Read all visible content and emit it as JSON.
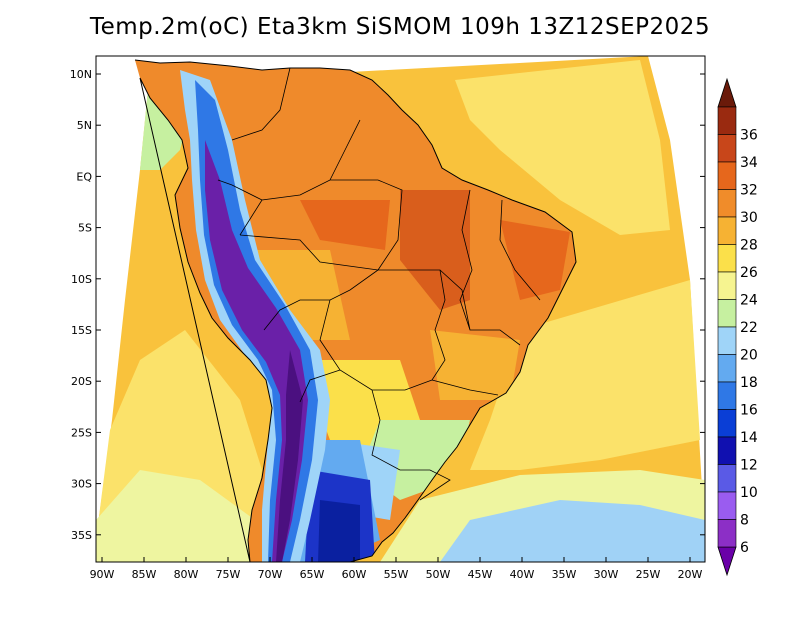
{
  "title": "Temp.2m(oC) Eta3km SiSMOM 109h 13Z12SEP2025",
  "lat_labels": [
    "10N",
    "5N",
    "EQ",
    "5S",
    "10S",
    "15S",
    "20S",
    "25S",
    "30S",
    "35S"
  ],
  "lon_labels": [
    "90W",
    "85W",
    "80W",
    "75W",
    "70W",
    "65W",
    "60W",
    "55W",
    "50W",
    "45W",
    "40W",
    "35W",
    "30W",
    "25W",
    "20W"
  ],
  "colorbar": {
    "labels": [
      "6",
      "8",
      "10",
      "12",
      "14",
      "16",
      "18",
      "20",
      "22",
      "24",
      "26",
      "28",
      "30",
      "32",
      "34",
      "36"
    ],
    "colors": [
      "#6a00a8",
      "#8c2fc6",
      "#9a5cf0",
      "#5a5ae6",
      "#1010b0",
      "#0a3ed6",
      "#2f78e6",
      "#63aaf0",
      "#9fd4f8",
      "#c6f0a0",
      "#f6f490",
      "#fbe04a",
      "#f6b233",
      "#f08c2a",
      "#e6671c",
      "#c8461a",
      "#9a2a10",
      "#6a1a0a"
    ]
  },
  "map_colors": {
    "ocean_warm": "#f9c23c",
    "ocean_mild": "#fbe26a",
    "ocean_cool": "#eef5a0",
    "ocean_cold": "#a0d2f6",
    "land_hot": "#ef8a2b",
    "land_very_hot": "#d95e1c",
    "andes_cold": "#6a20a8",
    "andes_colder": "#4b1080",
    "south_cold": "#1c34c8",
    "border": "#000000"
  }
}
